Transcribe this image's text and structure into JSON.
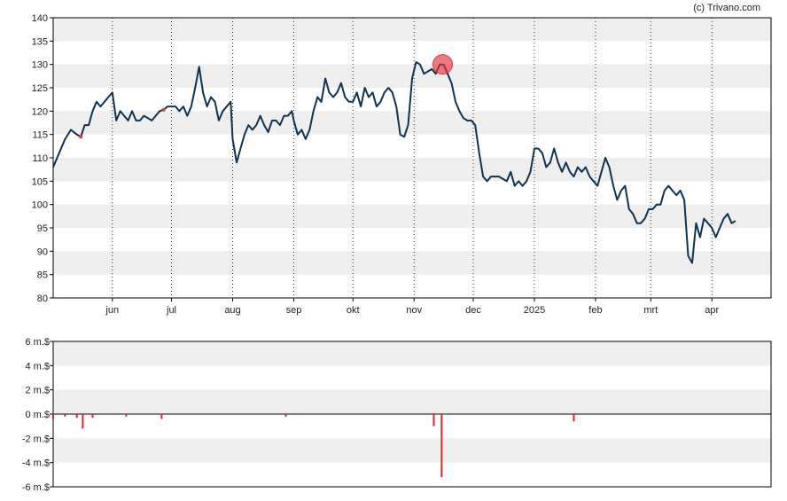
{
  "credit": "(c) Trivano.com",
  "colors": {
    "band": "#eeeeee",
    "line": "#0f3350",
    "highlight": "#e4363f",
    "volume": "#e0202c",
    "axis": "#000000"
  },
  "chart_data": [
    {
      "type": "line",
      "y_ticks": [
        "80",
        "85",
        "90",
        "95",
        "100",
        "105",
        "110",
        "115",
        "120",
        "125",
        "130",
        "135",
        "140"
      ],
      "ylim": [
        80,
        140
      ],
      "x_ticks": [
        {
          "label": "jun",
          "x": 30
        },
        {
          "label": "jul",
          "x": 60
        },
        {
          "label": "aug",
          "x": 91
        },
        {
          "label": "sep",
          "x": 122
        },
        {
          "label": "okt",
          "x": 152
        },
        {
          "label": "nov",
          "x": 183
        },
        {
          "label": "dec",
          "x": 213
        },
        {
          "label": "2025",
          "x": 244
        },
        {
          "label": "feb",
          "x": 275
        },
        {
          "label": "mrt",
          "x": 303
        },
        {
          "label": "apr",
          "x": 334
        }
      ],
      "xlim": [
        0,
        364
      ],
      "grid": "dotted vertical at month starts, alternating horizontal bands",
      "series": [
        {
          "points": [
            [
              0,
              108
            ],
            [
              3,
              111
            ],
            [
              6,
              114
            ],
            [
              9,
              116
            ],
            [
              12,
              115
            ],
            [
              14,
              114.5
            ],
            [
              16,
              117
            ],
            [
              18,
              117
            ],
            [
              20,
              120
            ],
            [
              22,
              122
            ],
            [
              24,
              121
            ],
            [
              26,
              122
            ],
            [
              28,
              123
            ],
            [
              30,
              124
            ],
            [
              32,
              118
            ],
            [
              34,
              120
            ],
            [
              36,
              119
            ],
            [
              38,
              118
            ],
            [
              40,
              120
            ],
            [
              42,
              118
            ],
            [
              44,
              118
            ],
            [
              46,
              119
            ],
            [
              48,
              118.5
            ],
            [
              50,
              118
            ],
            [
              52,
              119
            ],
            [
              54,
              120
            ],
            [
              56,
              120.3
            ],
            [
              58,
              121
            ],
            [
              60,
              121
            ],
            [
              62,
              121
            ],
            [
              64,
              120
            ],
            [
              66,
              121
            ],
            [
              68,
              119
            ],
            [
              70,
              121
            ],
            [
              72,
              125
            ],
            [
              74,
              129.5
            ],
            [
              76,
              124
            ],
            [
              78,
              121
            ],
            [
              80,
              123
            ],
            [
              82,
              122
            ],
            [
              84,
              118
            ],
            [
              86,
              120
            ],
            [
              88,
              121
            ],
            [
              90,
              122
            ],
            [
              91,
              114
            ],
            [
              93,
              109
            ],
            [
              95,
              112
            ],
            [
              97,
              115
            ],
            [
              99,
              117
            ],
            [
              101,
              116
            ],
            [
              103,
              117
            ],
            [
              105,
              119
            ],
            [
              107,
              117
            ],
            [
              109,
              115.5
            ],
            [
              111,
              118
            ],
            [
              113,
              118
            ],
            [
              115,
              117
            ],
            [
              117,
              119
            ],
            [
              119,
              119
            ],
            [
              121,
              120
            ],
            [
              122,
              118
            ],
            [
              124,
              115
            ],
            [
              126,
              116
            ],
            [
              128,
              114
            ],
            [
              130,
              116
            ],
            [
              132,
              120
            ],
            [
              134,
              123
            ],
            [
              136,
              122
            ],
            [
              138,
              127
            ],
            [
              140,
              124
            ],
            [
              142,
              123
            ],
            [
              144,
              124
            ],
            [
              146,
              126
            ],
            [
              148,
              123
            ],
            [
              150,
              122
            ],
            [
              152,
              122
            ],
            [
              154,
              124
            ],
            [
              156,
              121
            ],
            [
              158,
              125
            ],
            [
              160,
              123
            ],
            [
              162,
              124
            ],
            [
              164,
              121
            ],
            [
              166,
              122
            ],
            [
              168,
              124
            ],
            [
              170,
              125
            ],
            [
              172,
              124
            ],
            [
              174,
              121
            ],
            [
              176,
              115
            ],
            [
              178,
              114.5
            ],
            [
              180,
              117
            ],
            [
              182,
              127
            ],
            [
              184,
              130.5
            ],
            [
              186,
              130
            ],
            [
              188,
              128
            ],
            [
              190,
              128.5
            ],
            [
              192,
              129
            ],
            [
              194,
              128
            ],
            [
              196,
              130
            ],
            [
              198,
              130
            ],
            [
              200,
              128
            ],
            [
              202,
              126
            ],
            [
              204,
              122
            ],
            [
              206,
              120
            ],
            [
              208,
              118.5
            ],
            [
              210,
              118
            ],
            [
              212,
              118
            ],
            [
              214,
              117
            ],
            [
              216,
              111
            ],
            [
              218,
              106
            ],
            [
              220,
              105
            ],
            [
              222,
              106
            ],
            [
              224,
              106
            ],
            [
              226,
              106
            ],
            [
              228,
              105.5
            ],
            [
              230,
              105
            ],
            [
              232,
              107
            ],
            [
              234,
              104
            ],
            [
              236,
              105
            ],
            [
              238,
              104
            ],
            [
              240,
              105
            ],
            [
              242,
              107
            ],
            [
              244,
              112
            ],
            [
              246,
              112
            ],
            [
              248,
              111
            ],
            [
              250,
              108
            ],
            [
              252,
              109
            ],
            [
              254,
              112
            ],
            [
              256,
              109
            ],
            [
              258,
              107
            ],
            [
              260,
              109
            ],
            [
              262,
              107
            ],
            [
              264,
              106
            ],
            [
              266,
              108
            ],
            [
              268,
              107
            ],
            [
              270,
              108
            ],
            [
              272,
              106
            ],
            [
              274,
              105
            ],
            [
              276,
              104
            ],
            [
              278,
              107
            ],
            [
              280,
              110
            ],
            [
              282,
              108
            ],
            [
              284,
              104
            ],
            [
              286,
              101
            ],
            [
              288,
              103
            ],
            [
              290,
              104
            ],
            [
              292,
              99
            ],
            [
              294,
              98
            ],
            [
              296,
              96
            ],
            [
              298,
              96
            ],
            [
              300,
              97
            ],
            [
              302,
              99
            ],
            [
              304,
              99
            ],
            [
              306,
              100
            ],
            [
              308,
              100
            ],
            [
              310,
              103
            ],
            [
              312,
              104
            ],
            [
              314,
              103
            ],
            [
              316,
              102
            ],
            [
              318,
              103
            ],
            [
              320,
              101
            ],
            [
              322,
              89
            ],
            [
              324,
              87.5
            ],
            [
              326,
              96
            ],
            [
              328,
              93
            ],
            [
              330,
              97
            ],
            [
              332,
              96
            ],
            [
              334,
              95
            ],
            [
              336,
              93
            ],
            [
              338,
              95
            ],
            [
              340,
              97
            ],
            [
              342,
              98
            ],
            [
              344,
              96
            ],
            [
              346,
              96.5
            ]
          ],
          "highlight_point": [
            197.5,
            130
          ],
          "small_markers": [
            [
              14,
              114.5
            ],
            [
              56,
              120.3
            ]
          ]
        }
      ]
    },
    {
      "type": "bar",
      "y_ticks": [
        "6 m.$",
        "4 m.$",
        "2 m.$",
        "0 m.$",
        "-2 m.$",
        "-4 m.$",
        "-6 m.$"
      ],
      "ylim": [
        -6,
        6
      ],
      "unit": "million $",
      "bars": [
        {
          "x": 0,
          "value": -0.4
        },
        {
          "x": 6,
          "value": -0.2
        },
        {
          "x": 12,
          "value": -0.3
        },
        {
          "x": 15,
          "value": -1.2
        },
        {
          "x": 20,
          "value": -0.3
        },
        {
          "x": 37,
          "value": -0.2
        },
        {
          "x": 55,
          "value": -0.4
        },
        {
          "x": 118,
          "value": -0.2
        },
        {
          "x": 193,
          "value": -1.0
        },
        {
          "x": 197,
          "value": -5.2
        },
        {
          "x": 264,
          "value": -0.6
        }
      ]
    }
  ]
}
